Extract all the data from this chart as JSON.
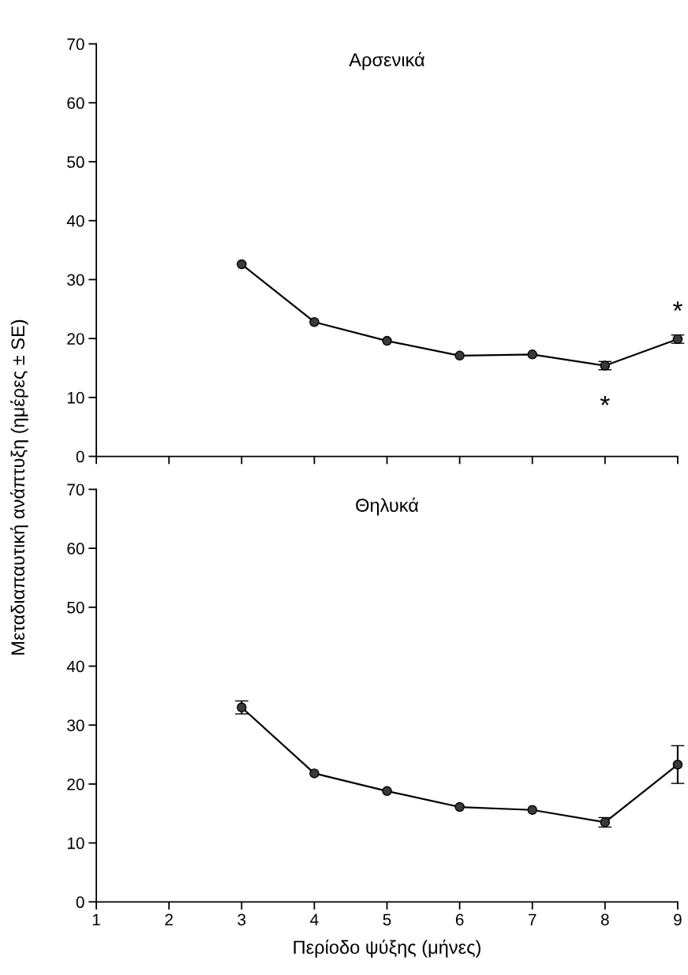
{
  "chart_data": [
    {
      "type": "line",
      "title": "Αρσενικά",
      "ylabel": "Μεταδιαπαυτική ανάπτυξη (ημέρες ± SE)",
      "x": [
        3,
        4,
        5,
        6,
        7,
        8,
        9
      ],
      "series": [
        {
          "color": "#3a3a3a",
          "values": [
            32.6,
            22.8,
            19.6,
            17.1,
            17.3,
            15.4,
            19.9
          ],
          "errors": [
            null,
            null,
            null,
            null,
            null,
            0.7,
            0.7
          ]
        }
      ],
      "xlim": [
        1,
        9
      ],
      "xticks": [
        1,
        2,
        3,
        4,
        5,
        6,
        7,
        8,
        9
      ],
      "ylim": [
        0,
        70
      ],
      "yticks": [
        0,
        10,
        20,
        30,
        40,
        50,
        60,
        70
      ],
      "tick_labels": "y",
      "marker": "circle",
      "line_style": "solid",
      "grid": false,
      "legend": false,
      "annotations": [
        {
          "text": "*",
          "x": 8,
          "y": 15.4
        },
        {
          "text": "*",
          "x": 9,
          "y": 19.9
        }
      ]
    },
    {
      "type": "line",
      "title": "Θηλυκά",
      "xlabel": "Περίοδο ψύξης (μήνες)",
      "x": [
        3,
        4,
        5,
        6,
        7,
        8,
        9
      ],
      "series": [
        {
          "color": "#3a3a3a",
          "values": [
            33.0,
            21.8,
            18.8,
            16.1,
            15.6,
            13.5,
            23.3
          ],
          "errors": [
            1.1,
            null,
            null,
            null,
            null,
            0.8,
            3.2
          ]
        }
      ],
      "xlim": [
        1,
        9
      ],
      "xticks": [
        1,
        2,
        3,
        4,
        5,
        6,
        7,
        8,
        9
      ],
      "ylim": [
        0,
        70
      ],
      "yticks": [
        0,
        10,
        20,
        30,
        40,
        50,
        60,
        70
      ],
      "marker": "circle",
      "line_style": "solid",
      "grid": false,
      "legend": false
    }
  ]
}
